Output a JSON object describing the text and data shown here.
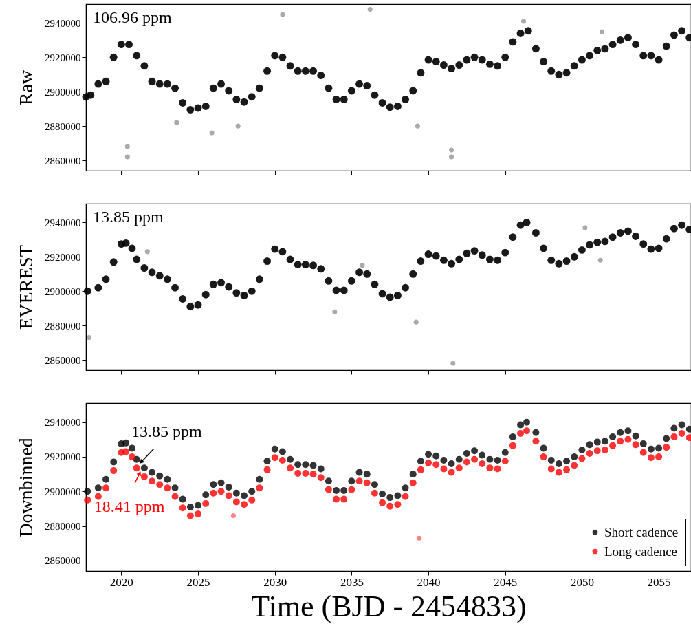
{
  "chart_data": [
    {
      "type": "scatter",
      "ylabel": "Raw",
      "annotations": [
        "106.96 ppm"
      ],
      "xlim": [
        2017.7,
        2057.1
      ],
      "ylim": [
        2854000,
        2951000
      ],
      "xticks": [
        2020,
        2025,
        2030,
        2035,
        2040,
        2045,
        2050,
        2055
      ],
      "yticks": [
        2860000,
        2880000,
        2900000,
        2920000,
        2940000
      ],
      "tick_labels": "y",
      "marker": "circle",
      "series": [
        {
          "color": "#000000",
          "x": [
            2017.7,
            2018,
            2018.5,
            2019,
            2019.5,
            2020,
            2020.5,
            2021,
            2021.5,
            2022,
            2022.5,
            2023,
            2023.5,
            2024,
            2024.5,
            2025,
            2025.5,
            2026,
            2026.5,
            2027,
            2027.5,
            2028,
            2028.5,
            2029,
            2029.5,
            2030,
            2030.5,
            2031,
            2031.5,
            2032,
            2032.5,
            2033,
            2033.5,
            2034,
            2034.5,
            2035,
            2035.5,
            2036,
            2036.5,
            2037,
            2037.5,
            2038,
            2038.5,
            2039,
            2039.5,
            2040,
            2040.5,
            2041,
            2041.5,
            2042,
            2042.5,
            2043,
            2043.5,
            2044,
            2044.5,
            2045,
            2045.5,
            2046,
            2046.5,
            2047,
            2047.5,
            2048,
            2048.5,
            2049,
            2049.5,
            2050,
            2050.5,
            2051,
            2051.5,
            2052,
            2052.5,
            2053,
            2053.5,
            2054,
            2054.5,
            2055,
            2055.5,
            2056,
            2056.5,
            2057
          ],
          "values": [
            2897000,
            2898000,
            2904500,
            2906000,
            2920000,
            2927500,
            2927500,
            2921000,
            2915000,
            2906000,
            2904500,
            2904500,
            2902000,
            2893500,
            2889500,
            2890500,
            2891500,
            2902000,
            2904500,
            2900500,
            2895500,
            2894000,
            2897000,
            2902000,
            2912000,
            2921000,
            2920000,
            2915000,
            2912000,
            2912000,
            2912000,
            2909500,
            2902000,
            2895500,
            2895500,
            2900500,
            2904500,
            2903500,
            2898000,
            2893500,
            2891000,
            2891500,
            2895500,
            2900500,
            2911000,
            2918500,
            2917500,
            2915500,
            2913500,
            2915500,
            2918500,
            2920000,
            2918500,
            2916000,
            2915000,
            2920000,
            2929000,
            2934000,
            2935500,
            2925000,
            2917500,
            2912000,
            2910000,
            2911000,
            2915000,
            2918500,
            2921000,
            2924000,
            2925000,
            2927500,
            2930000,
            2931500,
            2927500,
            2921000,
            2921000,
            2918500,
            2926500,
            2933000,
            2935500,
            2931500
          ]
        },
        {
          "color": "#aaaaaa",
          "x": [
            2020.4,
            2020.4,
            2023.6,
            2025.9,
            2027.6,
            2039.3,
            2041.5,
            2041.5,
            2046.2,
            2051.3,
            2030.5,
            2036.2
          ],
          "values": [
            2868000,
            2862000,
            2882000,
            2876000,
            2880000,
            2880000,
            2866000,
            2862000,
            2941000,
            2935000,
            2945000,
            2948000
          ]
        }
      ]
    },
    {
      "type": "scatter",
      "ylabel": "EVEREST",
      "annotations": [
        "13.85 ppm"
      ],
      "xlim": [
        2017.7,
        2057.1
      ],
      "ylim": [
        2854000,
        2951000
      ],
      "xticks": [
        2020,
        2025,
        2030,
        2035,
        2040,
        2045,
        2050,
        2055
      ],
      "yticks": [
        2860000,
        2880000,
        2900000,
        2920000,
        2940000
      ],
      "tick_labels": "y",
      "marker": "circle",
      "series": [
        {
          "color": "#000000",
          "x": [
            2017.8,
            2018.5,
            2019,
            2019.5,
            2020,
            2020.3,
            2020.7,
            2021,
            2021.5,
            2022,
            2022.5,
            2023,
            2023.5,
            2024,
            2024.5,
            2025,
            2025.5,
            2026,
            2026.5,
            2027,
            2027.5,
            2028,
            2028.5,
            2029,
            2029.5,
            2030,
            2030.5,
            2031,
            2031.5,
            2032,
            2032.5,
            2033,
            2033.5,
            2034,
            2034.5,
            2035,
            2035.5,
            2036,
            2036.5,
            2037,
            2037.5,
            2038,
            2038.5,
            2039,
            2039.5,
            2040,
            2040.5,
            2041,
            2041.5,
            2042,
            2042.5,
            2043,
            2043.5,
            2044,
            2044.5,
            2045,
            2045.5,
            2046,
            2046.4,
            2047,
            2047.5,
            2048,
            2048.5,
            2049,
            2049.5,
            2050,
            2050.5,
            2051,
            2051.5,
            2052,
            2052.5,
            2053,
            2053.5,
            2054,
            2054.5,
            2055,
            2055.5,
            2056,
            2056.5,
            2057
          ],
          "values": [
            2900000,
            2902000,
            2907000,
            2917000,
            2927500,
            2928000,
            2925000,
            2918500,
            2913500,
            2911000,
            2909000,
            2907000,
            2902000,
            2895500,
            2891000,
            2892000,
            2898000,
            2904000,
            2905000,
            2902500,
            2899000,
            2897500,
            2900000,
            2907000,
            2917500,
            2924500,
            2923000,
            2918500,
            2915500,
            2915500,
            2915000,
            2913000,
            2906000,
            2900500,
            2900500,
            2906000,
            2911000,
            2910000,
            2904000,
            2898500,
            2896500,
            2897500,
            2902000,
            2910000,
            2917500,
            2921500,
            2920500,
            2918000,
            2916000,
            2918500,
            2922000,
            2923500,
            2921000,
            2918500,
            2918000,
            2922500,
            2931500,
            2938500,
            2940000,
            2934000,
            2925000,
            2918000,
            2916000,
            2917500,
            2920000,
            2924000,
            2927000,
            2928500,
            2929000,
            2931500,
            2934000,
            2935000,
            2932000,
            2927500,
            2924500,
            2925000,
            2930500,
            2936500,
            2938500,
            2936000
          ]
        },
        {
          "color": "#aaaaaa",
          "x": [
            2021.7,
            2035.7,
            2033.9,
            2017.9,
            2039.2,
            2051.2,
            2050.2,
            2041.6
          ],
          "values": [
            2923000,
            2915000,
            2888000,
            2873000,
            2882000,
            2918000,
            2937000,
            2858000
          ]
        }
      ]
    },
    {
      "type": "scatter",
      "ylabel": "Downbinned",
      "xlabel": "Time (BJD - 2454833)",
      "annotations": [
        {
          "text": "13.85 ppm",
          "x": 2021.3,
          "y": 2917000
        },
        {
          "text": "18.41 ppm",
          "x": 2021.2,
          "y": 2910500
        }
      ],
      "xlim": [
        2017.7,
        2057.1
      ],
      "ylim": [
        2854000,
        2951000
      ],
      "xticks": [
        2020,
        2025,
        2030,
        2035,
        2040,
        2045,
        2050,
        2055
      ],
      "yticks": [
        2860000,
        2880000,
        2900000,
        2920000,
        2940000
      ],
      "marker": "circle",
      "legend": "bottom right",
      "series": [
        {
          "name": "Short cadence",
          "color": "#000000",
          "x": [
            2017.8,
            2018.5,
            2019,
            2019.5,
            2020,
            2020.3,
            2020.7,
            2021,
            2021.5,
            2022,
            2022.5,
            2023,
            2023.5,
            2024,
            2024.5,
            2025,
            2025.5,
            2026,
            2026.5,
            2027,
            2027.5,
            2028,
            2028.5,
            2029,
            2029.5,
            2030,
            2030.5,
            2031,
            2031.5,
            2032,
            2032.5,
            2033,
            2033.5,
            2034,
            2034.5,
            2035,
            2035.5,
            2036,
            2036.5,
            2037,
            2037.5,
            2038,
            2038.5,
            2039,
            2039.5,
            2040,
            2040.5,
            2041,
            2041.5,
            2042,
            2042.5,
            2043,
            2043.5,
            2044,
            2044.5,
            2045,
            2045.5,
            2046,
            2046.4,
            2047,
            2047.5,
            2048,
            2048.5,
            2049,
            2049.5,
            2050,
            2050.5,
            2051,
            2051.5,
            2052,
            2052.5,
            2053,
            2053.5,
            2054,
            2054.5,
            2055,
            2055.5,
            2056,
            2056.5,
            2057
          ],
          "values": [
            2900000,
            2902000,
            2907000,
            2917000,
            2927500,
            2928000,
            2925000,
            2918500,
            2913500,
            2911000,
            2909000,
            2907000,
            2902000,
            2895500,
            2891000,
            2892000,
            2898000,
            2904000,
            2905000,
            2902500,
            2899000,
            2897500,
            2900000,
            2907000,
            2917500,
            2924500,
            2923000,
            2918500,
            2915500,
            2915500,
            2915000,
            2913000,
            2906000,
            2900500,
            2900500,
            2906000,
            2911000,
            2910000,
            2904000,
            2898500,
            2896500,
            2897500,
            2902000,
            2910000,
            2917500,
            2921500,
            2920500,
            2918000,
            2916000,
            2918500,
            2922000,
            2923500,
            2921000,
            2918500,
            2918000,
            2922500,
            2931500,
            2938500,
            2940000,
            2934000,
            2925000,
            2918000,
            2916000,
            2917500,
            2920000,
            2924000,
            2927000,
            2928500,
            2929000,
            2931500,
            2934000,
            2935000,
            2932000,
            2927500,
            2924500,
            2925000,
            2930500,
            2936500,
            2938500,
            2936000
          ]
        },
        {
          "name": "Long cadence",
          "color": "#ff0000",
          "x": [
            2017.8,
            2018.5,
            2019,
            2019.5,
            2020,
            2020.3,
            2020.7,
            2021,
            2021.5,
            2022,
            2022.5,
            2023,
            2023.5,
            2024,
            2024.5,
            2025,
            2025.5,
            2026,
            2026.5,
            2027,
            2027.5,
            2028,
            2028.5,
            2029,
            2029.5,
            2030,
            2030.5,
            2031,
            2031.5,
            2032,
            2032.5,
            2033,
            2033.5,
            2034,
            2034.5,
            2035,
            2035.5,
            2036,
            2036.5,
            2037,
            2037.5,
            2038,
            2038.5,
            2039,
            2039.5,
            2040,
            2040.5,
            2041,
            2041.5,
            2042,
            2042.5,
            2043,
            2043.5,
            2044,
            2044.5,
            2045,
            2045.5,
            2046,
            2046.4,
            2047,
            2047.5,
            2048,
            2048.5,
            2049,
            2049.5,
            2050,
            2050.5,
            2051,
            2051.5,
            2052,
            2052.5,
            2053,
            2053.5,
            2054,
            2054.5,
            2055,
            2055.5,
            2056,
            2056.5,
            2057
          ],
          "values": [
            2895000,
            2897000,
            2902000,
            2912000,
            2922500,
            2923000,
            2920000,
            2913500,
            2908500,
            2906000,
            2904000,
            2902000,
            2897000,
            2890500,
            2886000,
            2887000,
            2893000,
            2899000,
            2900000,
            2897500,
            2894000,
            2892500,
            2895000,
            2902000,
            2912500,
            2919500,
            2918000,
            2913500,
            2910500,
            2910500,
            2910000,
            2908000,
            2901000,
            2895500,
            2895500,
            2901000,
            2906000,
            2905000,
            2899000,
            2893500,
            2891500,
            2892500,
            2897000,
            2905000,
            2912500,
            2916500,
            2915500,
            2913000,
            2911000,
            2913500,
            2917000,
            2918500,
            2916000,
            2913500,
            2913000,
            2917500,
            2926500,
            2933500,
            2935000,
            2929000,
            2920000,
            2913000,
            2911000,
            2912500,
            2915000,
            2919000,
            2922000,
            2923500,
            2924000,
            2926500,
            2929000,
            2930000,
            2927000,
            2922500,
            2919500,
            2920000,
            2925500,
            2931500,
            2933500,
            2931000
          ]
        },
        {
          "color": "#ff8080",
          "x": [
            2039.4,
            2027.3
          ],
          "values": [
            2873000,
            2886000
          ]
        }
      ]
    }
  ]
}
